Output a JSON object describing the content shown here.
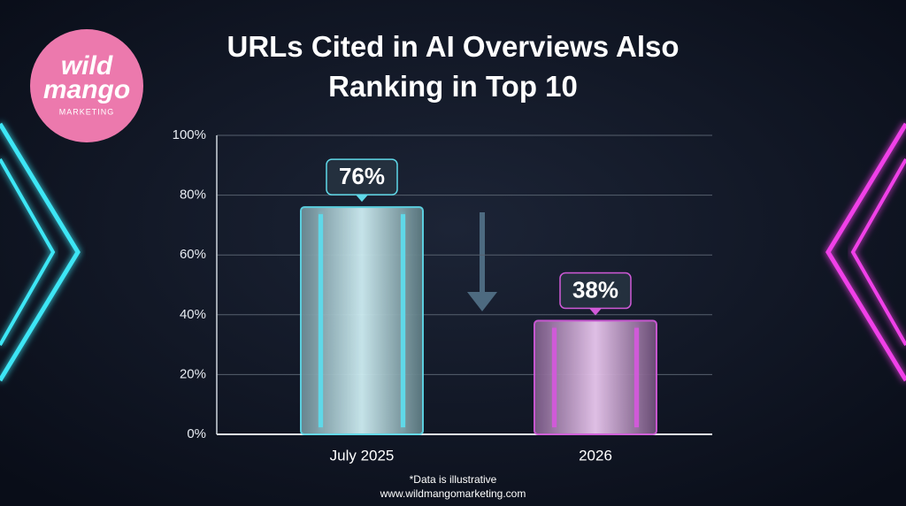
{
  "logo": {
    "line1": "wild",
    "line2": "mango",
    "tagline": "MARKETING"
  },
  "chart_data": {
    "type": "bar",
    "title": "URLs Cited in AI Overviews Also Ranking in Top 10",
    "categories": [
      "July 2025",
      "2026"
    ],
    "values": [
      76,
      38
    ],
    "value_labels": [
      "76%",
      "38%"
    ],
    "colors": [
      "#5fd8e8",
      "#d05ad8"
    ],
    "ylim": [
      0,
      100
    ],
    "yticks": [
      {
        "value": 0,
        "label": "0%"
      },
      {
        "value": 20,
        "label": "20%"
      },
      {
        "value": 40,
        "label": "40%"
      },
      {
        "value": 60,
        "label": "60%"
      },
      {
        "value": 80,
        "label": "80%"
      },
      {
        "value": 100,
        "label": "100%"
      }
    ],
    "grid": true,
    "note": "*Data is illustrative",
    "source": "www.wildmangomarketing.com"
  }
}
